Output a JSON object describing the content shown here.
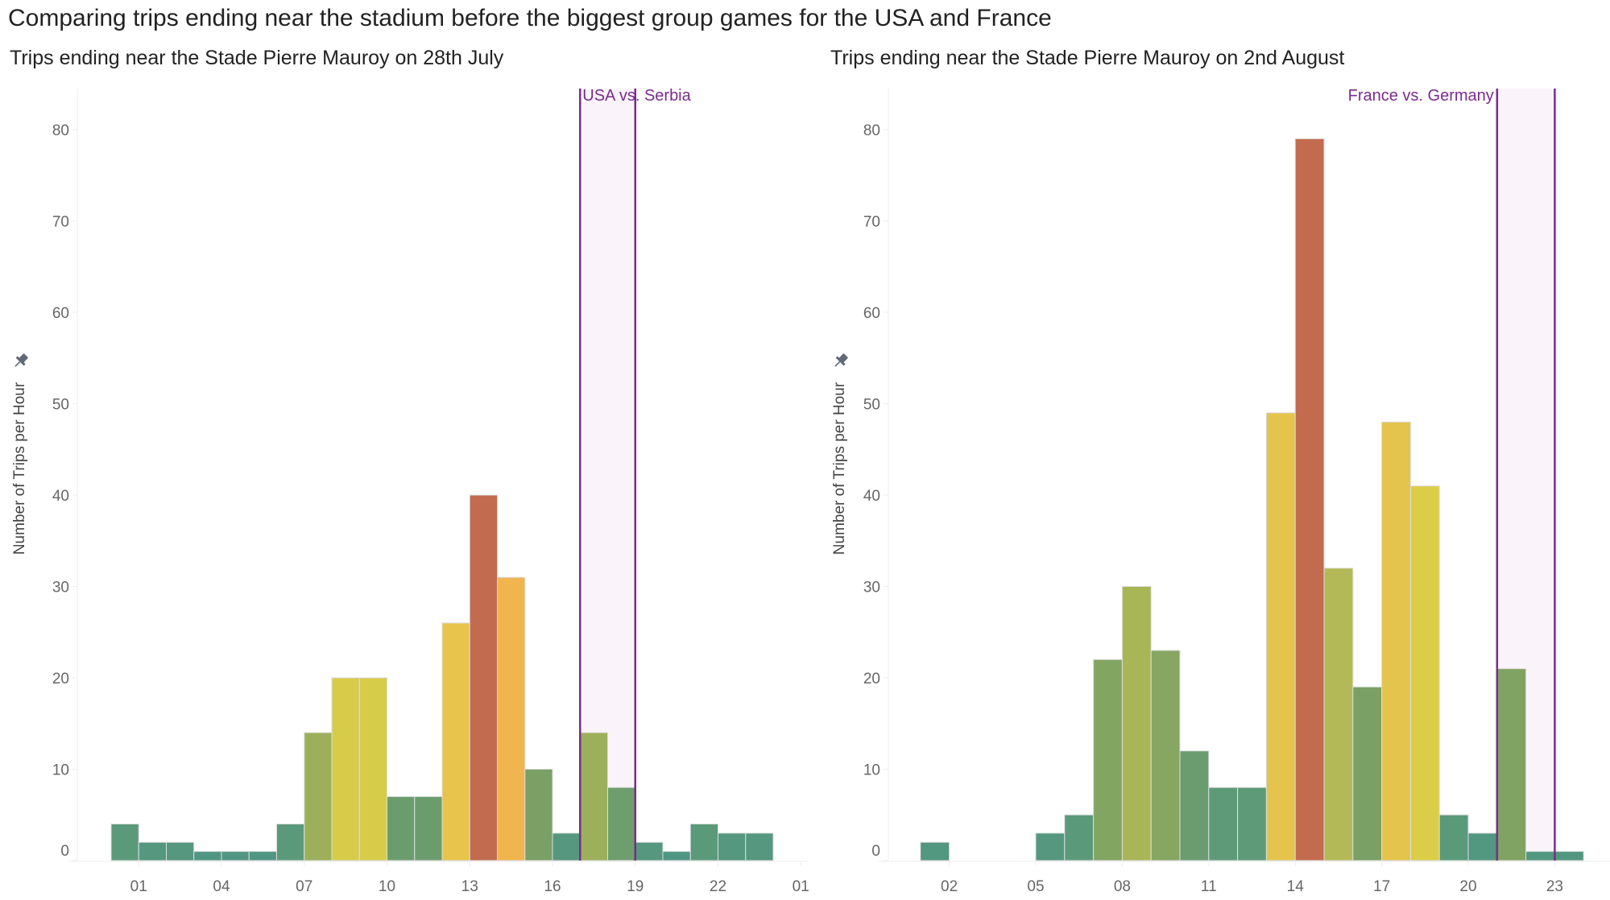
{
  "title": "Comparing trips ending near the stadium before the biggest group games for the USA and France",
  "colors": {
    "event_rule": "#7b2b8e",
    "event_band": "#faf4fa",
    "bar_stroke": "#dddddd",
    "axis": "#eeeeee",
    "pin_icon": "#5e6a7a"
  },
  "chart_data": [
    {
      "type": "bar",
      "title": "Trips ending near the Stade Pierre Mauroy on 28th July",
      "xlabel": "",
      "ylabel": "Number of Trips per Hour",
      "ylim": [
        0,
        85
      ],
      "xlim_hours": [
        -1.25,
        25.3
      ],
      "y_ticks": [
        "0",
        "10",
        "20",
        "30",
        "40",
        "50",
        "60",
        "70",
        "80"
      ],
      "x_ticks": [
        {
          "hour": 1,
          "label": "01"
        },
        {
          "hour": 4,
          "label": "04"
        },
        {
          "hour": 7,
          "label": "07"
        },
        {
          "hour": 10,
          "label": "10"
        },
        {
          "hour": 13,
          "label": "13"
        },
        {
          "hour": 16,
          "label": "16"
        },
        {
          "hour": 19,
          "label": "19"
        },
        {
          "hour": 22,
          "label": "22"
        },
        {
          "hour": 25,
          "label": "01"
        }
      ],
      "grid": false,
      "hours": [
        0,
        1,
        2,
        3,
        4,
        5,
        6,
        7,
        8,
        9,
        10,
        11,
        12,
        13,
        14,
        15,
        16,
        17,
        18,
        19,
        20,
        21,
        22,
        23
      ],
      "values": [
        4,
        2,
        2,
        1,
        1,
        1,
        4,
        14,
        20,
        20,
        7,
        7,
        26,
        40,
        31,
        10,
        3,
        14,
        8,
        2,
        1,
        4,
        3,
        3
      ],
      "bar_colors": [
        "#5a9a7a",
        "#55977f",
        "#55977f",
        "#509682",
        "#509682",
        "#509682",
        "#5a9a7a",
        "#9cb05c",
        "#d6cc4a",
        "#d6cc4a",
        "#6b9c6e",
        "#6b9c6e",
        "#e8c44c",
        "#c26b4f",
        "#f0b54f",
        "#7aa065",
        "#55977f",
        "#9cb05c",
        "#6e9e6d",
        "#55977f",
        "#509682",
        "#5a9a7a",
        "#55977f",
        "#55977f"
      ],
      "event": {
        "label": "USA vs. Serbia",
        "start_hour": 17,
        "end_hour": 19,
        "label_anchor": "start"
      }
    },
    {
      "type": "bar",
      "title": "Trips ending near the Stade Pierre Mauroy on 2nd August",
      "xlabel": "",
      "ylabel": "Number of Trips per Hour",
      "ylim": [
        0,
        85
      ],
      "xlim_hours": [
        -0.1,
        25
      ],
      "y_ticks": [
        "0",
        "10",
        "20",
        "30",
        "40",
        "50",
        "60",
        "70",
        "80"
      ],
      "x_ticks": [
        {
          "hour": 2,
          "label": "02"
        },
        {
          "hour": 5,
          "label": "05"
        },
        {
          "hour": 8,
          "label": "08"
        },
        {
          "hour": 11,
          "label": "11"
        },
        {
          "hour": 14,
          "label": "14"
        },
        {
          "hour": 17,
          "label": "17"
        },
        {
          "hour": 20,
          "label": "20"
        },
        {
          "hour": 23,
          "label": "23"
        }
      ],
      "grid": false,
      "hours": [
        1,
        2,
        3,
        4,
        5,
        6,
        7,
        8,
        9,
        10,
        11,
        12,
        13,
        14,
        15,
        16,
        17,
        18,
        19,
        20,
        21,
        22,
        23
      ],
      "values": [
        2,
        0,
        0,
        0,
        3,
        5,
        22,
        30,
        23,
        12,
        8,
        8,
        49,
        79,
        32,
        19,
        48,
        41,
        5,
        3,
        21,
        1,
        1
      ],
      "bar_colors": [
        "#52977f",
        "#52977f",
        "#52977f",
        "#52977f",
        "#55977f",
        "#5a9a7a",
        "#83a562",
        "#a8b656",
        "#86a662",
        "#6a9c70",
        "#5f9a78",
        "#5f9a78",
        "#e4c44c",
        "#c26b4f",
        "#b4b957",
        "#7aa065",
        "#e4c44c",
        "#dccd48",
        "#5a9a7a",
        "#52977f",
        "#80a262",
        "#52977f",
        "#52977f"
      ],
      "event": {
        "label": "France vs. Germany",
        "start_hour": 21,
        "end_hour": 23,
        "label_anchor": "end"
      }
    }
  ]
}
